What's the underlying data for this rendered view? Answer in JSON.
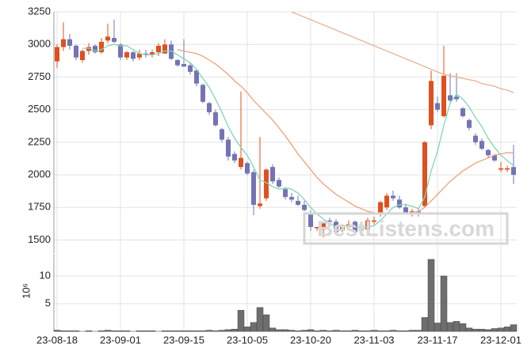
{
  "chart_data": [
    {
      "type": "candlestick",
      "watermark": "BestListens.com",
      "up_color": "#e0501e",
      "down_color": "#7474b4",
      "ylim": [
        1400,
        3250
      ],
      "yticks": [
        1500,
        1750,
        2000,
        2250,
        2500,
        2750,
        3000,
        3250
      ],
      "grid": true,
      "open": [
        2870,
        2980,
        3040,
        2990,
        2880,
        2950,
        2990,
        2940,
        3030,
        3050,
        3000,
        2900,
        2940,
        2900,
        2930,
        2920,
        2940,
        2930,
        3000,
        2880,
        2850,
        2840,
        2800,
        2690,
        2550,
        2480,
        2350,
        2270,
        2160,
        2060,
        2090,
        2020,
        1760,
        1820,
        2060,
        1960,
        1890,
        1830,
        1800,
        1770,
        1710,
        1590,
        1580,
        1650,
        1640,
        1570,
        1600,
        1640,
        1580,
        1580,
        1640,
        1700,
        1750,
        1840,
        1810,
        1750,
        1700,
        1720,
        1760,
        2380,
        2550,
        2450,
        2610,
        2600,
        2510,
        2420,
        2300,
        2260,
        2190,
        2150,
        2040,
        2040,
        2060
      ],
      "high": [
        3000,
        3170,
        3080,
        3000,
        2960,
        3010,
        3000,
        3050,
        3160,
        3190,
        3010,
        2950,
        2950,
        2960,
        2960,
        2960,
        3010,
        3040,
        3030,
        2890,
        3040,
        2860,
        2810,
        2700,
        2560,
        2500,
        2360,
        2290,
        2180,
        2640,
        2100,
        2040,
        2290,
        2050,
        2080,
        1980,
        1900,
        1860,
        1840,
        1800,
        1730,
        1600,
        1640,
        1670,
        1660,
        1620,
        1650,
        1650,
        1600,
        1670,
        1680,
        1800,
        1860,
        1880,
        1840,
        1780,
        1740,
        1740,
        2260,
        2800,
        2600,
        2990,
        2780,
        2780,
        2520,
        2430,
        2320,
        2280,
        2200,
        2160,
        2100,
        2070,
        2230
      ],
      "low": [
        2820,
        2950,
        2960,
        2880,
        2860,
        2920,
        2930,
        2930,
        3010,
        3010,
        2880,
        2880,
        2870,
        2880,
        2900,
        2900,
        2910,
        2930,
        2880,
        2830,
        2830,
        2770,
        2680,
        2550,
        2460,
        2370,
        2250,
        2110,
        2090,
        2040,
        2000,
        1690,
        1740,
        1800,
        1930,
        1900,
        1810,
        1790,
        1760,
        1720,
        1570,
        1570,
        1520,
        1630,
        1540,
        1560,
        1590,
        1540,
        1560,
        1570,
        1620,
        1680,
        1730,
        1800,
        1740,
        1700,
        1680,
        1680,
        1750,
        2350,
        2480,
        2440,
        2560,
        2560,
        2440,
        2340,
        2230,
        2190,
        2130,
        2100,
        2020,
        2020,
        1930
      ],
      "close": [
        2980,
        3040,
        2990,
        2900,
        2950,
        2980,
        2940,
        3020,
        3060,
        3020,
        2900,
        2940,
        2890,
        2930,
        2920,
        2940,
        2990,
        3000,
        2890,
        2840,
        2830,
        2790,
        2700,
        2560,
        2480,
        2380,
        2270,
        2140,
        2110,
        2130,
        2010,
        1770,
        1780,
        2040,
        1950,
        1910,
        1830,
        1810,
        1770,
        1730,
        1600,
        1600,
        1630,
        1640,
        1560,
        1600,
        1620,
        1560,
        1580,
        1650,
        1650,
        1790,
        1840,
        1820,
        1750,
        1710,
        1720,
        1710,
        2250,
        2720,
        2500,
        2760,
        2570,
        2580,
        2450,
        2360,
        2250,
        2200,
        2150,
        2110,
        2050,
        2050,
        2000
      ],
      "lines": [
        {
          "color": "#7fd6b8",
          "values": [
            null,
            null,
            null,
            null,
            2970,
            2970,
            2950,
            2960,
            2990,
            3000,
            2990,
            2990,
            2960,
            2930,
            2920,
            2920,
            2930,
            2950,
            2950,
            2920,
            2890,
            2860,
            2810,
            2740,
            2670,
            2580,
            2480,
            2370,
            2280,
            2210,
            2150,
            2060,
            1960,
            1940,
            1910,
            1890,
            1900,
            1890,
            1860,
            1810,
            1750,
            1700,
            1660,
            1630,
            1600,
            1610,
            1610,
            1600,
            1590,
            1600,
            1610,
            1650,
            1700,
            1750,
            1770,
            1770,
            1760,
            1740,
            1830,
            2030,
            2180,
            2380,
            2550,
            2620,
            2580,
            2520,
            2440,
            2370,
            2280,
            2210,
            2150,
            2110,
            2070
          ]
        },
        {
          "color": "#eea07e",
          "values": [
            null,
            null,
            null,
            null,
            null,
            null,
            null,
            null,
            null,
            null,
            null,
            null,
            null,
            null,
            null,
            null,
            null,
            null,
            null,
            2960,
            2950,
            2940,
            2930,
            2910,
            2880,
            2850,
            2810,
            2770,
            2720,
            2680,
            2630,
            2570,
            2520,
            2470,
            2420,
            2360,
            2300,
            2230,
            2160,
            2100,
            2040,
            1980,
            1930,
            1890,
            1850,
            1820,
            1790,
            1760,
            1740,
            1720,
            1710,
            1700,
            1700,
            1700,
            1700,
            1700,
            1710,
            1720,
            1750,
            1800,
            1850,
            1900,
            1950,
            1990,
            2030,
            2060,
            2090,
            2110,
            2130,
            2150,
            2160,
            2170,
            2170
          ]
        },
        {
          "color": "#ebb090",
          "values": [
            null,
            null,
            null,
            null,
            null,
            null,
            null,
            null,
            null,
            null,
            null,
            null,
            null,
            null,
            null,
            null,
            null,
            null,
            null,
            null,
            null,
            null,
            null,
            null,
            null,
            null,
            null,
            null,
            null,
            null,
            null,
            null,
            null,
            null,
            null,
            null,
            null,
            3250,
            3230,
            3210,
            3190,
            3170,
            3150,
            3130,
            3110,
            3090,
            3070,
            3050,
            3030,
            3010,
            2990,
            2970,
            2950,
            2930,
            2910,
            2890,
            2870,
            2850,
            2830,
            2810,
            2790,
            2770,
            2760,
            2750,
            2740,
            2730,
            2720,
            2700,
            2690,
            2680,
            2660,
            2650,
            2630
          ]
        }
      ]
    },
    {
      "type": "bar",
      "color": "#6e6e6e",
      "ylabel": "10⁶",
      "ylim": [
        0,
        14
      ],
      "yticks": [
        5,
        10
      ],
      "grid": true,
      "categories": [
        "23-08-18",
        null,
        null,
        null,
        null,
        null,
        null,
        null,
        null,
        null,
        "23-09-01",
        null,
        null,
        null,
        null,
        null,
        null,
        null,
        null,
        null,
        "23-09-15",
        null,
        null,
        null,
        null,
        null,
        null,
        null,
        null,
        null,
        "23-10-05",
        null,
        null,
        null,
        null,
        null,
        null,
        null,
        null,
        null,
        "23-10-20",
        null,
        null,
        null,
        null,
        null,
        null,
        null,
        null,
        null,
        "23-11-03",
        null,
        null,
        null,
        null,
        null,
        null,
        null,
        null,
        null,
        "23-11-17",
        null,
        null,
        null,
        null,
        null,
        null,
        null,
        null,
        null,
        "23-12-01",
        null,
        null
      ],
      "values": [
        0.2,
        0.1,
        0.1,
        0.1,
        0,
        0.1,
        0,
        0.1,
        0.2,
        0.1,
        0.1,
        0.1,
        0,
        0.1,
        0.1,
        0.1,
        0,
        0.1,
        0.1,
        0.1,
        0.1,
        0.1,
        0.1,
        0.1,
        0.2,
        0.1,
        0.2,
        0.3,
        0.4,
        3.8,
        0.8,
        1.6,
        4.3,
        3.0,
        0.6,
        0.3,
        0.3,
        0.2,
        0.1,
        0.2,
        0.3,
        0.1,
        0.2,
        0.1,
        0.2,
        0.1,
        0.1,
        0.2,
        0.1,
        0.1,
        0.2,
        0.1,
        0.1,
        0.2,
        0.1,
        0.1,
        0.2,
        0.2,
        2.5,
        13.0,
        1.5,
        10.0,
        1.6,
        1.8,
        1.4,
        0.6,
        0.4,
        0.4,
        0.3,
        0.5,
        0.6,
        0.8,
        1.2
      ]
    }
  ]
}
